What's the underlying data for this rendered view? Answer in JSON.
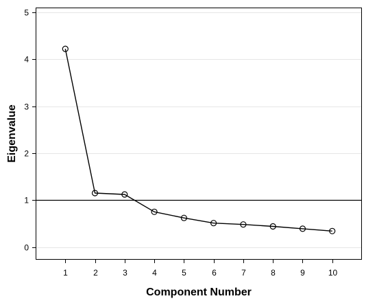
{
  "chart_data": {
    "type": "line",
    "title": "",
    "xlabel": "Component Number",
    "ylabel": "Eigenvalue",
    "x": [
      1,
      2,
      3,
      4,
      5,
      6,
      7,
      8,
      9,
      10
    ],
    "x_tick_labels": [
      "1",
      "2",
      "3",
      "4",
      "5",
      "6",
      "7",
      "8",
      "9",
      "10"
    ],
    "xlim": [
      0,
      11
    ],
    "y_ticks": [
      0,
      1,
      2,
      3,
      4,
      5
    ],
    "y_tick_labels": [
      "0",
      "1",
      "2",
      "3",
      "4",
      "5"
    ],
    "ylim": [
      -0.27,
      5.1
    ],
    "series": [
      {
        "values": [
          4.22,
          1.15,
          1.12,
          0.75,
          0.62,
          0.51,
          0.48,
          0.44,
          0.39,
          0.34
        ],
        "marker": "open-circle",
        "color": "#000000"
      }
    ],
    "reference_line": {
      "y": 1,
      "color": "#000000"
    },
    "grid": {
      "horizontal": true,
      "vertical": false,
      "color": "#e6e6e6"
    },
    "legend": "none"
  }
}
